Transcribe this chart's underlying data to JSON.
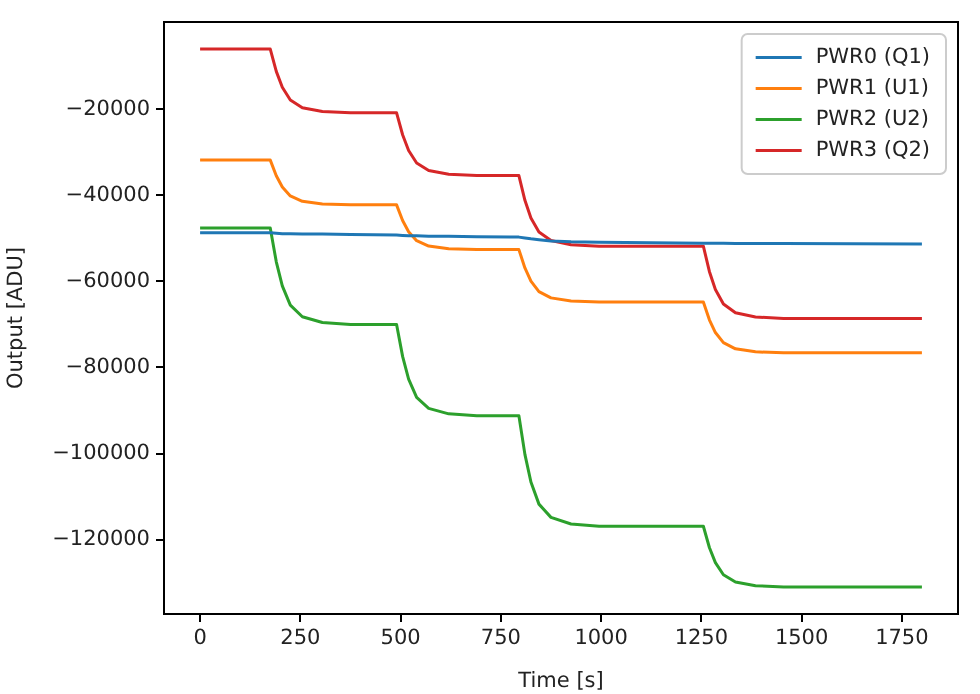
{
  "chart_data": {
    "type": "line",
    "xlabel": "Time [s]",
    "ylabel": "Output [ADU]",
    "x": [
      0,
      175,
      190,
      205,
      225,
      255,
      305,
      375,
      490,
      505,
      520,
      540,
      570,
      620,
      690,
      795,
      810,
      825,
      845,
      875,
      925,
      995,
      1255,
      1270,
      1285,
      1305,
      1335,
      1385,
      1455,
      1800
    ],
    "series": [
      {
        "name": "PWR0 (Q1)",
        "color": "#1f77b4",
        "values": [
          -48700,
          -48700,
          -48800,
          -48900,
          -48900,
          -49000,
          -49000,
          -49100,
          -49200,
          -49300,
          -49400,
          -49400,
          -49500,
          -49500,
          -49600,
          -49700,
          -49900,
          -50100,
          -50300,
          -50600,
          -50800,
          -50900,
          -51100,
          -51100,
          -51100,
          -51100,
          -51200,
          -51200,
          -51200,
          -51300
        ]
      },
      {
        "name": "PWR1 (U1)",
        "color": "#ff7f0e",
        "values": [
          -31800,
          -31800,
          -35440,
          -38040,
          -40120,
          -41370,
          -41990,
          -42200,
          -42200,
          -45840,
          -48440,
          -50520,
          -51770,
          -52390,
          -52600,
          -52600,
          -56870,
          -59920,
          -62360,
          -63820,
          -64560,
          -64800,
          -64800,
          -68930,
          -71880,
          -74240,
          -75660,
          -76360,
          -76600,
          -76600
        ]
      },
      {
        "name": "PWR2 (U2)",
        "color": "#2ca02c",
        "values": [
          -47600,
          -47600,
          -55440,
          -61040,
          -65520,
          -68210,
          -69550,
          -70000,
          -70000,
          -77420,
          -82720,
          -86960,
          -89500,
          -90780,
          -91200,
          -91200,
          -100200,
          -106620,
          -111760,
          -114840,
          -116390,
          -116900,
          -116900,
          -121840,
          -125360,
          -128180,
          -129870,
          -130720,
          -131000,
          -131000
        ]
      },
      {
        "name": "PWR3 (Q2)",
        "color": "#d62728",
        "values": [
          -6000,
          -6000,
          -11180,
          -14880,
          -17840,
          -19620,
          -20500,
          -20800,
          -20800,
          -25910,
          -29560,
          -32480,
          -34230,
          -35110,
          -35400,
          -35400,
          -41140,
          -45240,
          -48520,
          -50490,
          -51470,
          -51800,
          -51800,
          -57680,
          -61880,
          -65240,
          -67260,
          -68260,
          -68600,
          -68600
        ]
      }
    ],
    "xlim": [
      -90,
      1890
    ],
    "ylim": [
      -137300,
      300
    ],
    "xticks": [
      0,
      250,
      500,
      750,
      1000,
      1250,
      1500,
      1750
    ],
    "yticks": [
      {
        "value": -120000,
        "label": "−120000"
      },
      {
        "value": -100000,
        "label": "−100000"
      },
      {
        "value": -80000,
        "label": "−80000"
      },
      {
        "value": -60000,
        "label": "−60000"
      },
      {
        "value": -40000,
        "label": "−40000"
      },
      {
        "value": -20000,
        "label": "−20000"
      }
    ],
    "legend": "top right",
    "grid": false
  }
}
